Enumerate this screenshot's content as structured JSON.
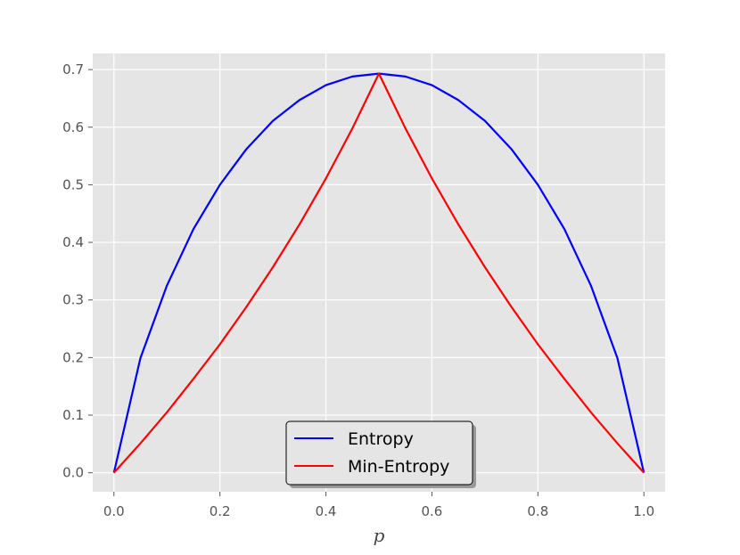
{
  "chart_data": {
    "type": "line",
    "title": "",
    "xlabel": "p",
    "ylabel": "",
    "xlim": [
      -0.04,
      1.04
    ],
    "ylim": [
      -0.033,
      0.728
    ],
    "grid": true,
    "legend_position": "lower center",
    "background": "#e5e5e5",
    "xticks": [
      0.0,
      0.2,
      0.4,
      0.6,
      0.8,
      1.0
    ],
    "xtick_labels": [
      "0.0",
      "0.2",
      "0.4",
      "0.6",
      "0.8",
      "1.0"
    ],
    "yticks": [
      0.0,
      0.1,
      0.2,
      0.3,
      0.4,
      0.5,
      0.6,
      0.7
    ],
    "ytick_labels": [
      "0.0",
      "0.1",
      "0.2",
      "0.3",
      "0.4",
      "0.5",
      "0.6",
      "0.7"
    ],
    "x": [
      0.0,
      0.05,
      0.1,
      0.15,
      0.2,
      0.25,
      0.3,
      0.35,
      0.4,
      0.45,
      0.5,
      0.55,
      0.6,
      0.65,
      0.7,
      0.75,
      0.8,
      0.85,
      0.9,
      0.95,
      1.0
    ],
    "series": [
      {
        "name": "Entropy",
        "color": "#0000ff",
        "values": [
          0.0,
          0.199,
          0.325,
          0.423,
          0.5,
          0.562,
          0.611,
          0.647,
          0.673,
          0.688,
          0.693,
          0.688,
          0.673,
          0.647,
          0.611,
          0.562,
          0.5,
          0.423,
          0.325,
          0.199,
          0.0
        ]
      },
      {
        "name": "Min-Entropy",
        "color": "#ff0000",
        "values": [
          0.0,
          0.051,
          0.105,
          0.163,
          0.223,
          0.288,
          0.357,
          0.431,
          0.511,
          0.598,
          0.693,
          0.598,
          0.511,
          0.431,
          0.357,
          0.288,
          0.223,
          0.163,
          0.105,
          0.051,
          0.0
        ]
      }
    ]
  }
}
